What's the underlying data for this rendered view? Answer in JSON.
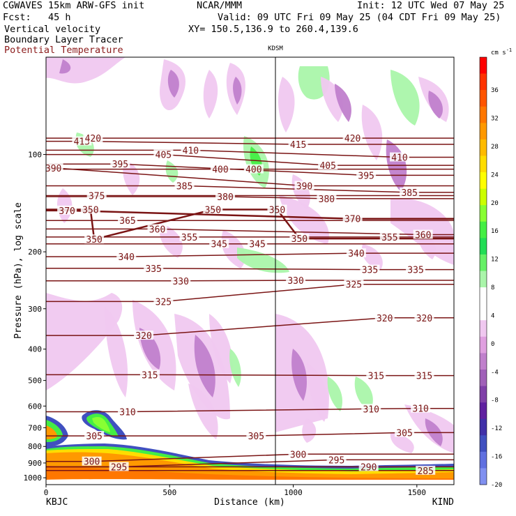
{
  "header": {
    "model": "CGWAVES 15km ARW-GFS init",
    "org": "NCAR/MMM",
    "init": "Init: 12 UTC Wed 07 May 25",
    "fcst": "Fcst:   45 h",
    "valid": "Valid: 09 UTC Fri 09 May 25 (04 CDT Fri 09 May 25)",
    "field1": "Vertical velocity",
    "field2": "Boundary Layer Tracer",
    "field3": "Potential Temperature",
    "xy": "XY= 150.5,136.9 to 260.4,139.6",
    "station_mid": "KDSM",
    "colors": {
      "field3": "#8b1a1a"
    }
  },
  "chart_data": {
    "type": "heatmap",
    "xlabel": "Distance (km)",
    "ylabel": "Pressure (hPa), log scale",
    "xlim": [
      0,
      1650
    ],
    "ylim": [
      1050,
      50
    ],
    "y_scale": "log",
    "x_ticks": [
      0,
      500,
      1000,
      1500
    ],
    "y_ticks": [
      100,
      200,
      300,
      400,
      500,
      600,
      700,
      800,
      900,
      1000
    ],
    "x_endpoints": {
      "left": "KBJC",
      "right": "KIND"
    },
    "station_marker": {
      "name": "KDSM",
      "x": 935
    },
    "colorbar": {
      "unit": "cm s",
      "unit_exp": "-1",
      "levels": [
        36,
        32,
        28,
        24,
        20,
        16,
        12,
        8,
        4,
        0,
        -4,
        -8,
        -12,
        -16,
        -20
      ],
      "colors": [
        "#ff0000",
        "#ff3300",
        "#ff5500",
        "#ff7700",
        "#ff9900",
        "#ffbb00",
        "#ffdd00",
        "#ffff00",
        "#ccff00",
        "#88ff33",
        "#44ee44",
        "#22dd55",
        "#66f066",
        "#aaf5aa",
        "#ffffff",
        "#ffffff",
        "#f0c8f0",
        "#e0a0e0",
        "#c080cc",
        "#a060b8",
        "#8040a8",
        "#6020a0",
        "#4030a8",
        "#4050c0",
        "#6070e0",
        "#8090f0"
      ]
    },
    "theta_labels": [
      {
        "text": "415",
        "x": 145,
        "p": 91
      },
      {
        "text": "420",
        "x": 190,
        "p": 89
      },
      {
        "text": "390",
        "x": 30,
        "p": 110
      },
      {
        "text": "395",
        "x": 300,
        "p": 107
      },
      {
        "text": "405",
        "x": 475,
        "p": 100
      },
      {
        "text": "410",
        "x": 585,
        "p": 97
      },
      {
        "text": "400",
        "x": 705,
        "p": 111
      },
      {
        "text": "400",
        "x": 840,
        "p": 111
      },
      {
        "text": "385",
        "x": 560,
        "p": 125
      },
      {
        "text": "375",
        "x": 205,
        "p": 134
      },
      {
        "text": "380",
        "x": 725,
        "p": 135
      },
      {
        "text": "350",
        "x": 935,
        "p": 148
      },
      {
        "text": "370",
        "x": 85,
        "p": 149
      },
      {
        "text": "350",
        "x": 180,
        "p": 148
      },
      {
        "text": "350",
        "x": 675,
        "p": 148
      },
      {
        "text": "365",
        "x": 330,
        "p": 160
      },
      {
        "text": "360",
        "x": 450,
        "p": 170
      },
      {
        "text": "355",
        "x": 580,
        "p": 180
      },
      {
        "text": "350",
        "x": 195,
        "p": 183
      },
      {
        "text": "345",
        "x": 700,
        "p": 189
      },
      {
        "text": "345",
        "x": 855,
        "p": 189
      },
      {
        "text": "340",
        "x": 325,
        "p": 207
      },
      {
        "text": "335",
        "x": 435,
        "p": 225
      },
      {
        "text": "330",
        "x": 545,
        "p": 246
      },
      {
        "text": "325",
        "x": 475,
        "p": 285
      },
      {
        "text": "320",
        "x": 395,
        "p": 363
      },
      {
        "text": "315",
        "x": 420,
        "p": 480
      },
      {
        "text": "310",
        "x": 330,
        "p": 625
      },
      {
        "text": "305",
        "x": 195,
        "p": 742
      },
      {
        "text": "305",
        "x": 850,
        "p": 742
      },
      {
        "text": "300",
        "x": 185,
        "p": 890
      },
      {
        "text": "295",
        "x": 295,
        "p": 925
      },
      {
        "text": "300",
        "x": 1020,
        "p": 845
      },
      {
        "text": "295",
        "x": 1175,
        "p": 880
      },
      {
        "text": "290",
        "x": 1305,
        "p": 925
      },
      {
        "text": "285",
        "x": 1535,
        "p": 950
      },
      {
        "text": "415",
        "x": 1020,
        "p": 93
      },
      {
        "text": "420",
        "x": 1240,
        "p": 89
      },
      {
        "text": "405",
        "x": 1140,
        "p": 108
      },
      {
        "text": "410",
        "x": 1430,
        "p": 102
      },
      {
        "text": "390",
        "x": 1045,
        "p": 125
      },
      {
        "text": "395",
        "x": 1295,
        "p": 116
      },
      {
        "text": "380",
        "x": 1135,
        "p": 137
      },
      {
        "text": "385",
        "x": 1470,
        "p": 131
      },
      {
        "text": "370",
        "x": 1240,
        "p": 158
      },
      {
        "text": "350",
        "x": 1025,
        "p": 182
      },
      {
        "text": "355",
        "x": 1390,
        "p": 180
      },
      {
        "text": "360",
        "x": 1525,
        "p": 177
      },
      {
        "text": "340",
        "x": 1255,
        "p": 202
      },
      {
        "text": "335",
        "x": 1310,
        "p": 227
      },
      {
        "text": "335",
        "x": 1495,
        "p": 227
      },
      {
        "text": "330",
        "x": 1010,
        "p": 245
      },
      {
        "text": "325",
        "x": 1245,
        "p": 252
      },
      {
        "text": "320",
        "x": 1370,
        "p": 320
      },
      {
        "text": "320",
        "x": 1530,
        "p": 320
      },
      {
        "text": "315",
        "x": 1335,
        "p": 483
      },
      {
        "text": "315",
        "x": 1530,
        "p": 483
      },
      {
        "text": "310",
        "x": 1315,
        "p": 612
      },
      {
        "text": "310",
        "x": 1515,
        "p": 610
      },
      {
        "text": "305",
        "x": 1450,
        "p": 725
      }
    ]
  }
}
